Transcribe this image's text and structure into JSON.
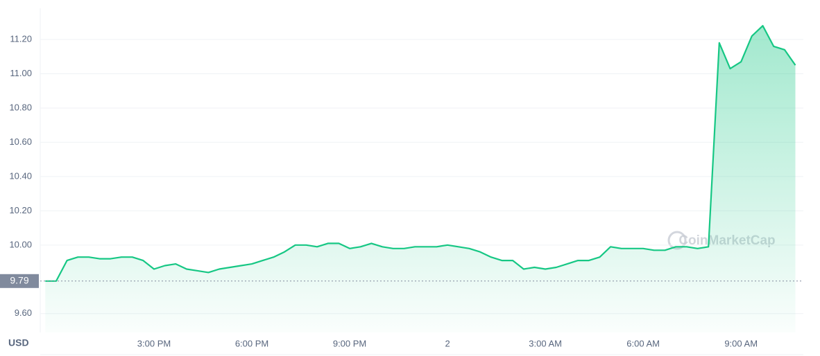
{
  "chart_data": {
    "type": "line",
    "y_label": "USD",
    "watermark": "CoinMarketCap",
    "baseline": 9.79,
    "color": "#16c784",
    "grid": true,
    "ylim": [
      9.49,
      11.39
    ],
    "yticks": [
      {
        "value": 9.6,
        "label": "9.60"
      },
      {
        "value": 10.0,
        "label": "10.00"
      },
      {
        "value": 10.2,
        "label": "10.20"
      },
      {
        "value": 10.4,
        "label": "10.40"
      },
      {
        "value": 10.6,
        "label": "10.60"
      },
      {
        "value": 10.8,
        "label": "10.80"
      },
      {
        "value": 11.0,
        "label": "11.00"
      },
      {
        "value": 11.2,
        "label": "11.20"
      }
    ],
    "x": [
      null,
      null,
      null,
      null,
      null,
      null,
      null,
      null,
      null,
      null,
      "3:00 PM",
      null,
      null,
      null,
      null,
      null,
      null,
      null,
      null,
      "6:00 PM",
      null,
      null,
      null,
      null,
      null,
      null,
      null,
      null,
      "9:00 PM",
      null,
      null,
      null,
      null,
      null,
      null,
      null,
      null,
      "2",
      null,
      null,
      null,
      null,
      null,
      null,
      null,
      null,
      "3:00 AM",
      null,
      null,
      null,
      null,
      null,
      null,
      null,
      null,
      "6:00 AM",
      null,
      null,
      null,
      null,
      null,
      null,
      null,
      null,
      "9:00 AM",
      null,
      null,
      null,
      null,
      null
    ],
    "values": [
      9.79,
      9.79,
      9.91,
      9.93,
      9.93,
      9.92,
      9.92,
      9.93,
      9.93,
      9.91,
      9.86,
      9.88,
      9.89,
      9.86,
      9.85,
      9.84,
      9.86,
      9.87,
      9.88,
      9.89,
      9.91,
      9.93,
      9.96,
      10.0,
      10.0,
      9.99,
      10.01,
      10.01,
      9.98,
      9.99,
      10.01,
      9.99,
      9.98,
      9.98,
      9.99,
      9.99,
      9.99,
      10.0,
      9.99,
      9.98,
      9.96,
      9.93,
      9.91,
      9.91,
      9.86,
      9.87,
      9.86,
      9.87,
      9.89,
      9.91,
      9.91,
      9.93,
      9.99,
      9.98,
      9.98,
      9.98,
      9.97,
      9.97,
      9.99,
      9.99,
      9.98,
      9.99,
      11.18,
      11.03,
      11.07,
      11.22,
      11.28,
      11.16,
      11.14,
      11.05
    ]
  }
}
